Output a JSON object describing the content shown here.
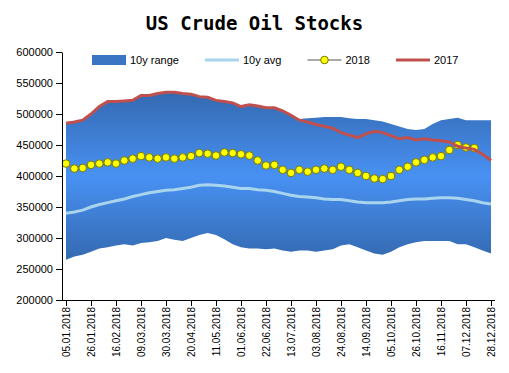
{
  "chart_data": {
    "type": "line",
    "title": "US Crude Oil Stocks",
    "categories": [
      "05.01.2018",
      null,
      null,
      "26.01.2018",
      null,
      null,
      "16.02.2018",
      null,
      null,
      "09.03.2018",
      null,
      null,
      "30.03.2018",
      null,
      null,
      "20.04.2018",
      null,
      null,
      "11.05.2018",
      null,
      null,
      "01.06.2018",
      null,
      null,
      "22.06.2018",
      null,
      null,
      "13.07.2018",
      null,
      null,
      "03.08.2018",
      null,
      null,
      "24.08.2018",
      null,
      null,
      "14.09.2018",
      null,
      null,
      "05.10.2018",
      null,
      null,
      "26.10.2018",
      null,
      null,
      "16.11.2018",
      null,
      null,
      "07.12.2018",
      null,
      null,
      "28.12.2018"
    ],
    "series": [
      {
        "name": "10y range",
        "type": "area",
        "color": "#3a75c4",
        "values": [
          485000,
          487000,
          490000,
          500000,
          512000,
          520000,
          520000,
          521000,
          522000,
          530000,
          530000,
          533000,
          535000,
          535000,
          533000,
          532000,
          528000,
          527000,
          522000,
          520000,
          518000,
          512000,
          515000,
          513000,
          510000,
          510000,
          505000,
          498000,
          492000,
          493000,
          494000,
          495000,
          495000,
          495000,
          493000,
          492000,
          492000,
          490000,
          488000,
          484000,
          480000,
          476000,
          474000,
          476000,
          484000,
          490000,
          492000,
          494000,
          490000,
          490000,
          490000,
          490000
        ],
        "lower": [
          265000,
          270000,
          273000,
          278000,
          283000,
          285000,
          288000,
          290000,
          288000,
          292000,
          293000,
          295000,
          300000,
          297000,
          295000,
          300000,
          305000,
          308000,
          305000,
          298000,
          290000,
          285000,
          283000,
          283000,
          282000,
          283000,
          280000,
          278000,
          280000,
          280000,
          278000,
          280000,
          282000,
          288000,
          290000,
          285000,
          280000,
          275000,
          273000,
          278000,
          285000,
          290000,
          293000,
          295000,
          295000,
          295000,
          295000,
          290000,
          290000,
          285000,
          280000,
          275000
        ]
      },
      {
        "name": "10y avg",
        "type": "line",
        "color": "#a9d4ee",
        "values": [
          340000,
          342000,
          345000,
          350000,
          354000,
          357000,
          360000,
          363000,
          367000,
          370000,
          373000,
          375000,
          377000,
          378000,
          380000,
          382000,
          385000,
          386000,
          385000,
          384000,
          382000,
          380000,
          380000,
          378000,
          377000,
          375000,
          372000,
          369000,
          367000,
          366000,
          365000,
          363000,
          362000,
          362000,
          360000,
          358000,
          357000,
          357000,
          357000,
          358000,
          360000,
          362000,
          363000,
          363000,
          364000,
          365000,
          365000,
          364000,
          362000,
          360000,
          357000,
          355000
        ]
      },
      {
        "name": "2018",
        "type": "line",
        "color": "#ffff00",
        "marker": "circle",
        "values": [
          420000,
          412000,
          413000,
          418000,
          420000,
          422000,
          420000,
          425000,
          428000,
          432000,
          430000,
          428000,
          430000,
          428000,
          430000,
          432000,
          437000,
          436000,
          433000,
          438000,
          437000,
          435000,
          433000,
          425000,
          417000,
          418000,
          410000,
          405000,
          410000,
          407000,
          410000,
          412000,
          410000,
          415000,
          410000,
          405000,
          400000,
          396000,
          395000,
          400000,
          410000,
          415000,
          422000,
          426000,
          430000,
          432000,
          442000,
          450000,
          446000,
          445000,
          null,
          null
        ]
      },
      {
        "name": "2017",
        "type": "line",
        "color": "#c0504d",
        "values": [
          485000,
          487000,
          490000,
          500000,
          512000,
          520000,
          520000,
          521000,
          522000,
          530000,
          530000,
          533000,
          535000,
          535000,
          533000,
          532000,
          528000,
          527000,
          522000,
          520000,
          518000,
          512000,
          515000,
          513000,
          510000,
          510000,
          505000,
          498000,
          490000,
          487000,
          483000,
          480000,
          477000,
          470000,
          466000,
          462000,
          468000,
          472000,
          470000,
          465000,
          460000,
          462000,
          458000,
          460000,
          458000,
          457000,
          455000,
          448000,
          445000,
          443000,
          435000,
          425000
        ]
      }
    ],
    "ylim": [
      200000,
      600000
    ],
    "yticks": [
      200000,
      250000,
      300000,
      350000,
      400000,
      450000,
      500000,
      550000,
      600000
    ],
    "grid": false,
    "legend": "top"
  }
}
